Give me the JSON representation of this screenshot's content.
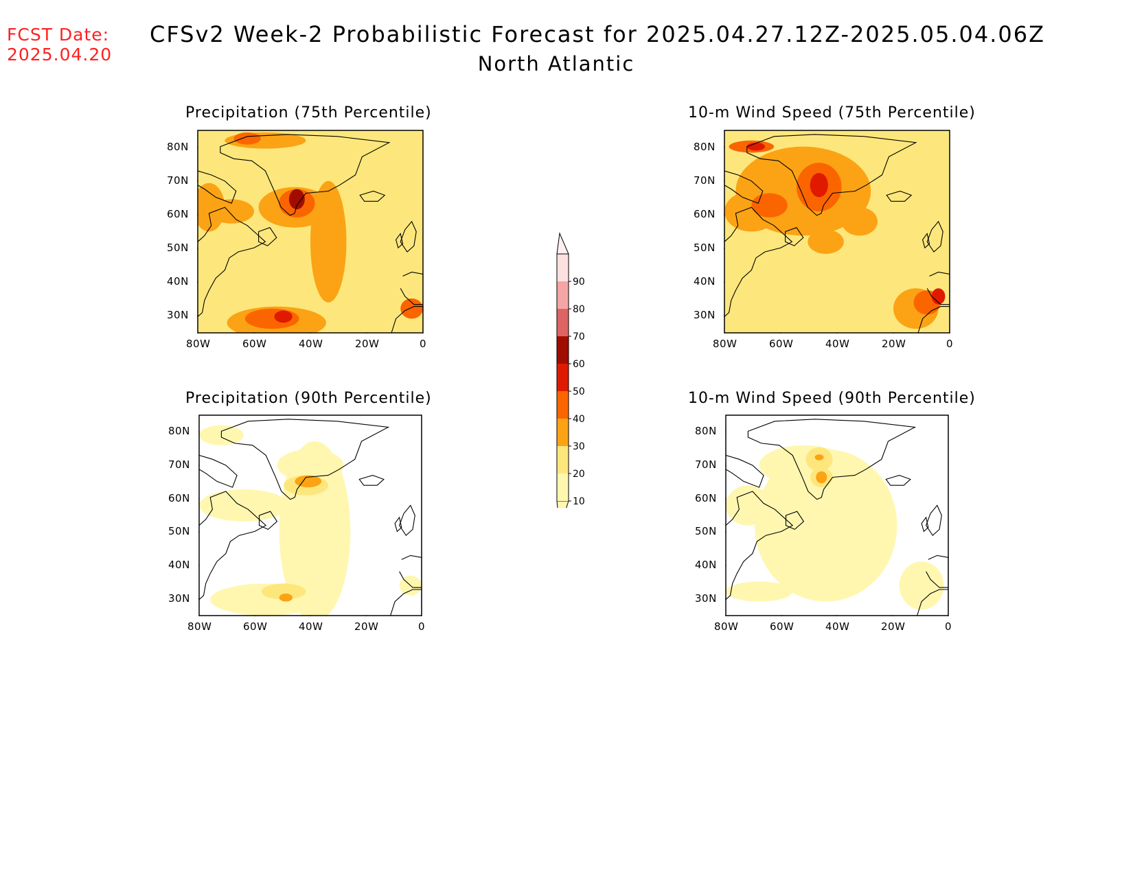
{
  "header": {
    "fcst_label": "FCST Date:",
    "fcst_date": "2025.04.20",
    "title": "CFSv2 Week-2 Probabilistic Forecast for 2025.04.27.12Z-2025.05.04.06Z",
    "region": "North Atlantic"
  },
  "panels": [
    {
      "id": "precip-75",
      "title": "Precipitation (75th Percentile)"
    },
    {
      "id": "wind-75",
      "title": "10-m Wind Speed (75th Percentile)"
    },
    {
      "id": "precip-90",
      "title": "Precipitation (90th Percentile)"
    },
    {
      "id": "wind-90",
      "title": "10-m Wind Speed (90th Percentile)"
    }
  ],
  "axes": {
    "lat_ticks": [
      "80N",
      "70N",
      "60N",
      "50N",
      "40N",
      "30N"
    ],
    "lon_ticks": [
      "80W",
      "60W",
      "40W",
      "20W",
      "0"
    ]
  },
  "colorbar": {
    "levels": [
      "10",
      "20",
      "30",
      "40",
      "50",
      "60",
      "70",
      "80",
      "90"
    ],
    "colors": [
      "#fff7b0",
      "#fde77c",
      "#fba314",
      "#fb6500",
      "#e01a00",
      "#a00d00",
      "#de6464",
      "#f5a5a5",
      "#fde0e0"
    ]
  },
  "chart_data": {
    "type": "heatmap",
    "lat_range": [
      25,
      85
    ],
    "lon_range": [
      -80,
      0
    ],
    "units": "probability (%)"
  }
}
